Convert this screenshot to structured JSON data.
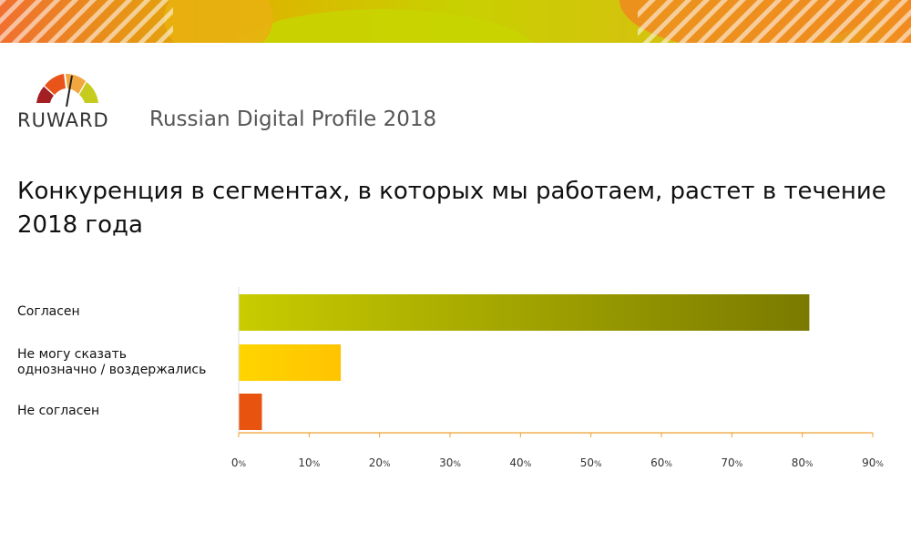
{
  "header": {
    "brand": "RUWARD",
    "subtitle": "Russian Digital Profile 2018"
  },
  "chart_data": {
    "type": "bar",
    "orientation": "horizontal",
    "title": "Конкуренция в сегментах, в которых мы работаем, растет в течение 2018 года",
    "categories": [
      "Согласен",
      "Не могу сказать однозначно / воздержались",
      "Не согласен"
    ],
    "category_lines": [
      [
        "Согласен"
      ],
      [
        "Не могу сказать",
        "однозначно / воздержались"
      ],
      [
        "Не согласен"
      ]
    ],
    "values": [
      81,
      14.5,
      3.3
    ],
    "xlim": [
      0,
      90
    ],
    "ticks": [
      0,
      10,
      20,
      30,
      40,
      50,
      60,
      70,
      80,
      90
    ],
    "tick_unit": "%",
    "grid": false,
    "colors": {
      "bar_agree_start": "#c8cc00",
      "bar_agree_end": "#7a7a00",
      "bar_neutral": "#ffcc00",
      "bar_disagree": "#e8540f",
      "axis": "#f0a030"
    }
  },
  "banner_colors": [
    "#f07030",
    "#f5a020",
    "#e0b000",
    "#c8d000",
    "#f28a20"
  ],
  "logo_colors": [
    "#a31f24",
    "#e9541a",
    "#f2a640",
    "#c6cc1e",
    "#222222"
  ]
}
